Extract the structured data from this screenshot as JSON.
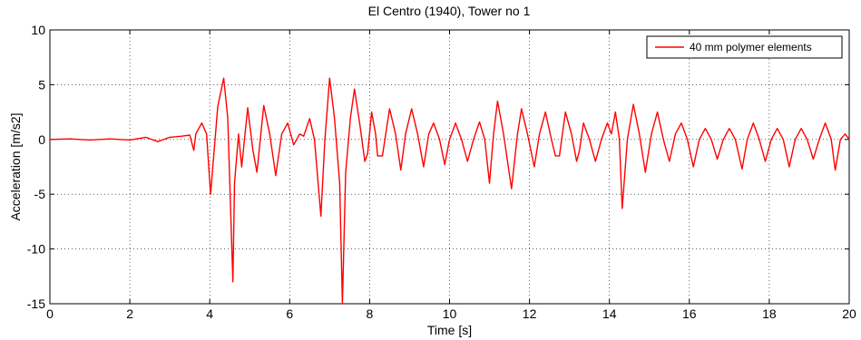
{
  "chart_data": {
    "type": "line",
    "title": "El Centro (1940), Tower no 1",
    "xlabel": "Time [s]",
    "ylabel": "Acceleration [m/s2]",
    "xlim": [
      0,
      20
    ],
    "ylim": [
      -15,
      10
    ],
    "xticks": [
      0,
      2,
      4,
      6,
      8,
      10,
      12,
      14,
      16,
      18,
      20
    ],
    "yticks": [
      -15,
      -10,
      -5,
      0,
      5,
      10
    ],
    "grid": true,
    "legend_position": "top-right",
    "series": [
      {
        "name": "40 mm polymer elements",
        "color": "#ff0000",
        "points": [
          [
            0,
            0
          ],
          [
            0.5,
            0.05
          ],
          [
            1.0,
            -0.05
          ],
          [
            1.5,
            0.05
          ],
          [
            2.0,
            -0.05
          ],
          [
            2.4,
            0.2
          ],
          [
            2.7,
            -0.2
          ],
          [
            3.0,
            0.2
          ],
          [
            3.3,
            0.3
          ],
          [
            3.5,
            0.4
          ],
          [
            3.6,
            -1.0
          ],
          [
            3.65,
            0.5
          ],
          [
            3.8,
            1.5
          ],
          [
            3.92,
            0.5
          ],
          [
            4.02,
            -5.0
          ],
          [
            4.2,
            3.0
          ],
          [
            4.35,
            5.6
          ],
          [
            4.45,
            2.0
          ],
          [
            4.58,
            -13.0
          ],
          [
            4.62,
            -4.0
          ],
          [
            4.72,
            0.5
          ],
          [
            4.8,
            -2.5
          ],
          [
            4.95,
            2.9
          ],
          [
            5.08,
            -1.0
          ],
          [
            5.18,
            -3.0
          ],
          [
            5.35,
            3.1
          ],
          [
            5.5,
            0.5
          ],
          [
            5.65,
            -3.3
          ],
          [
            5.8,
            0.5
          ],
          [
            5.95,
            1.5
          ],
          [
            6.1,
            -0.5
          ],
          [
            6.25,
            0.5
          ],
          [
            6.35,
            0.3
          ],
          [
            6.5,
            1.9
          ],
          [
            6.62,
            0.0
          ],
          [
            6.78,
            -7.0
          ],
          [
            6.88,
            0.0
          ],
          [
            7.0,
            5.6
          ],
          [
            7.12,
            2.0
          ],
          [
            7.25,
            -4.0
          ],
          [
            7.32,
            -15.0
          ],
          [
            7.4,
            -3.0
          ],
          [
            7.52,
            2.0
          ],
          [
            7.62,
            4.6
          ],
          [
            7.75,
            1.5
          ],
          [
            7.88,
            -2.0
          ],
          [
            7.95,
            -1.3
          ],
          [
            8.05,
            2.5
          ],
          [
            8.15,
            0.5
          ],
          [
            8.2,
            -1.5
          ],
          [
            8.32,
            -1.5
          ],
          [
            8.5,
            2.8
          ],
          [
            8.65,
            0.5
          ],
          [
            8.78,
            -2.8
          ],
          [
            8.9,
            0.5
          ],
          [
            9.05,
            2.8
          ],
          [
            9.2,
            0.5
          ],
          [
            9.35,
            -2.5
          ],
          [
            9.48,
            0.5
          ],
          [
            9.6,
            1.5
          ],
          [
            9.75,
            0.0
          ],
          [
            9.88,
            -2.3
          ],
          [
            10.0,
            0.0
          ],
          [
            10.15,
            1.5
          ],
          [
            10.3,
            0.0
          ],
          [
            10.45,
            -2.0
          ],
          [
            10.6,
            0.0
          ],
          [
            10.75,
            1.6
          ],
          [
            10.88,
            0.0
          ],
          [
            11.0,
            -4.0
          ],
          [
            11.1,
            0.5
          ],
          [
            11.2,
            3.5
          ],
          [
            11.35,
            0.5
          ],
          [
            11.55,
            -4.5
          ],
          [
            11.7,
            0.5
          ],
          [
            11.8,
            2.8
          ],
          [
            11.95,
            0.5
          ],
          [
            12.12,
            -2.5
          ],
          [
            12.25,
            0.5
          ],
          [
            12.4,
            2.5
          ],
          [
            12.55,
            0.0
          ],
          [
            12.65,
            -1.5
          ],
          [
            12.75,
            -1.5
          ],
          [
            12.9,
            2.5
          ],
          [
            13.05,
            0.5
          ],
          [
            13.18,
            -2.0
          ],
          [
            13.25,
            -1.0
          ],
          [
            13.35,
            1.5
          ],
          [
            13.5,
            0.0
          ],
          [
            13.65,
            -2.0
          ],
          [
            13.8,
            0.0
          ],
          [
            13.95,
            1.5
          ],
          [
            14.05,
            0.5
          ],
          [
            14.15,
            2.5
          ],
          [
            14.25,
            0.0
          ],
          [
            14.32,
            -6.3
          ],
          [
            14.45,
            0.0
          ],
          [
            14.6,
            3.2
          ],
          [
            14.75,
            0.5
          ],
          [
            14.9,
            -3.0
          ],
          [
            15.05,
            0.5
          ],
          [
            15.2,
            2.5
          ],
          [
            15.35,
            0.0
          ],
          [
            15.5,
            -2.0
          ],
          [
            15.65,
            0.5
          ],
          [
            15.8,
            1.5
          ],
          [
            15.95,
            0.0
          ],
          [
            16.1,
            -2.5
          ],
          [
            16.25,
            0.0
          ],
          [
            16.4,
            1.0
          ],
          [
            16.55,
            0.0
          ],
          [
            16.7,
            -1.8
          ],
          [
            16.85,
            0.0
          ],
          [
            17.0,
            1.0
          ],
          [
            17.15,
            0.0
          ],
          [
            17.32,
            -2.7
          ],
          [
            17.45,
            0.0
          ],
          [
            17.6,
            1.5
          ],
          [
            17.75,
            0.0
          ],
          [
            17.9,
            -2.0
          ],
          [
            18.05,
            0.0
          ],
          [
            18.2,
            1.0
          ],
          [
            18.35,
            0.0
          ],
          [
            18.5,
            -2.5
          ],
          [
            18.65,
            0.0
          ],
          [
            18.8,
            1.0
          ],
          [
            18.95,
            0.0
          ],
          [
            19.1,
            -1.8
          ],
          [
            19.25,
            0.0
          ],
          [
            19.4,
            1.5
          ],
          [
            19.55,
            0.0
          ],
          [
            19.65,
            -2.8
          ],
          [
            19.78,
            0.0
          ],
          [
            19.9,
            0.5
          ],
          [
            20.0,
            0.0
          ]
        ]
      }
    ]
  }
}
